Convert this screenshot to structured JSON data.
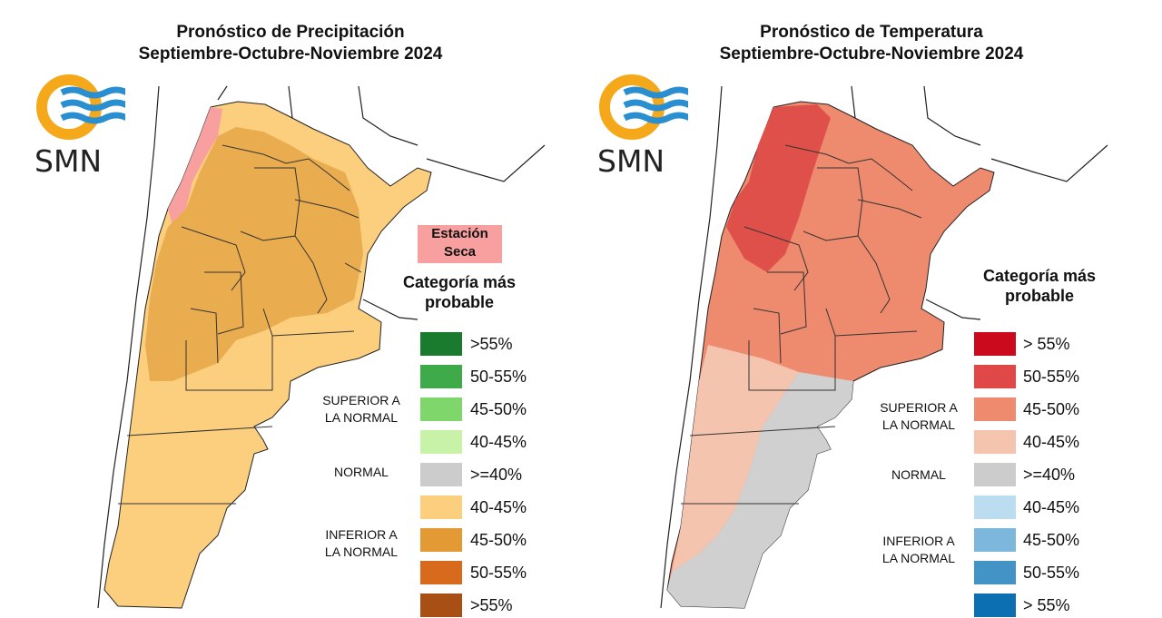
{
  "precip": {
    "title_line1": "Pronóstico de Precipitación",
    "title_line2": "Septiembre-Octubre-Noviembre 2024",
    "logo_text": "SMN",
    "dry_season_label_line1": "Estación",
    "dry_season_label_line2": "Seca",
    "legend_title_line1": "Categoría más",
    "legend_title_line2": "probable",
    "group_superior_line1": "SUPERIOR A",
    "group_superior_line2": "LA NORMAL",
    "group_normal": "NORMAL",
    "group_inferior_line1": "INFERIOR A",
    "group_inferior_line2": "LA NORMAL",
    "legend": [
      {
        "label": ">55%",
        "color": "#1a7a2e"
      },
      {
        "label": "50-55%",
        "color": "#3faa4a"
      },
      {
        "label": "45-50%",
        "color": "#7fd66b"
      },
      {
        "label": "40-45%",
        "color": "#c8f2a8"
      },
      {
        "label": ">=40%",
        "color": "#cccccc"
      },
      {
        "label": "40-45%",
        "color": "#fccf7e"
      },
      {
        "label": "45-50%",
        "color": "#e49a34"
      },
      {
        "label": "50-55%",
        "color": "#d76a1c"
      },
      {
        "label": ">55%",
        "color": "#a84f15"
      }
    ],
    "map_colors": {
      "dry": "#f8a0a0",
      "base": "#fccf7e",
      "mid": "#e9ac4e",
      "strong": "#df9c3a"
    }
  },
  "temp": {
    "title_line1": "Pronóstico de Temperatura",
    "title_line2": "Septiembre-Octubre-Noviembre 2024",
    "logo_text": "SMN",
    "legend_title_line1": "Categoría más",
    "legend_title_line2": "probable",
    "group_superior_line1": "SUPERIOR A",
    "group_superior_line2": "LA NORMAL",
    "group_normal": "NORMAL",
    "group_inferior_line1": "INFERIOR A",
    "group_inferior_line2": "LA NORMAL",
    "legend": [
      {
        "label": "> 55%",
        "color": "#cc0a1e"
      },
      {
        "label": "50-55%",
        "color": "#e04848"
      },
      {
        "label": "45-50%",
        "color": "#ee8a6e"
      },
      {
        "label": "40-45%",
        "color": "#f5c4ae"
      },
      {
        "label": ">=40%",
        "color": "#cccccc"
      },
      {
        "label": "40-45%",
        "color": "#bcdcef"
      },
      {
        "label": "45-50%",
        "color": "#7db7dc"
      },
      {
        "label": "50-55%",
        "color": "#4393c6"
      },
      {
        "label": "> 55%",
        "color": "#0c6fb2"
      }
    ],
    "map_colors": {
      "strong": "#e0504b",
      "base": "#ee8a6e",
      "light": "#f5c4ae",
      "normal": "#d0d0d0"
    }
  }
}
